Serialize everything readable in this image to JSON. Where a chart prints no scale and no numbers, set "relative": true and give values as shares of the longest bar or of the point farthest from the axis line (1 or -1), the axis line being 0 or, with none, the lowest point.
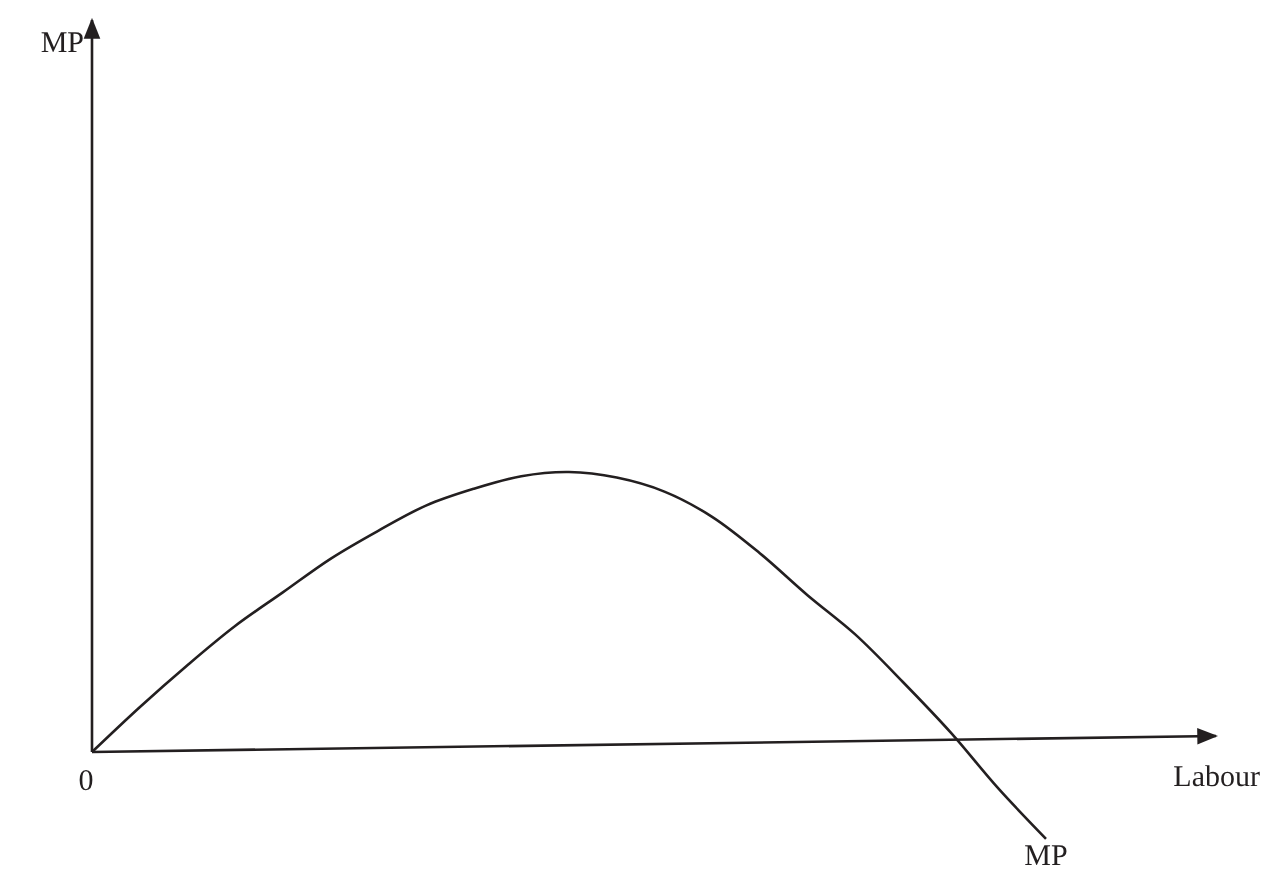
{
  "chart_data": {
    "type": "line",
    "relative": true,
    "xlabel": "Labour",
    "legend": false,
    "grid": false,
    "categories": [
      null,
      null,
      null,
      null,
      null,
      null,
      null,
      null,
      null,
      null,
      null,
      null,
      null,
      null,
      null,
      null,
      null,
      null,
      null,
      null,
      null
    ],
    "series": [
      {
        "name": "MP",
        "color": "#231f20",
        "values": [
          0,
          0.16,
          0.31,
          0.45,
          0.57,
          0.69,
          0.79,
          0.88,
          0.94,
          0.985,
          1,
          0.98,
          0.93,
          0.84,
          0.71,
          0.56,
          0.42,
          0.25,
          0.07,
          -0.13,
          -0.31
        ]
      }
    ],
    "annotations": [
      "0",
      "MP"
    ]
  }
}
